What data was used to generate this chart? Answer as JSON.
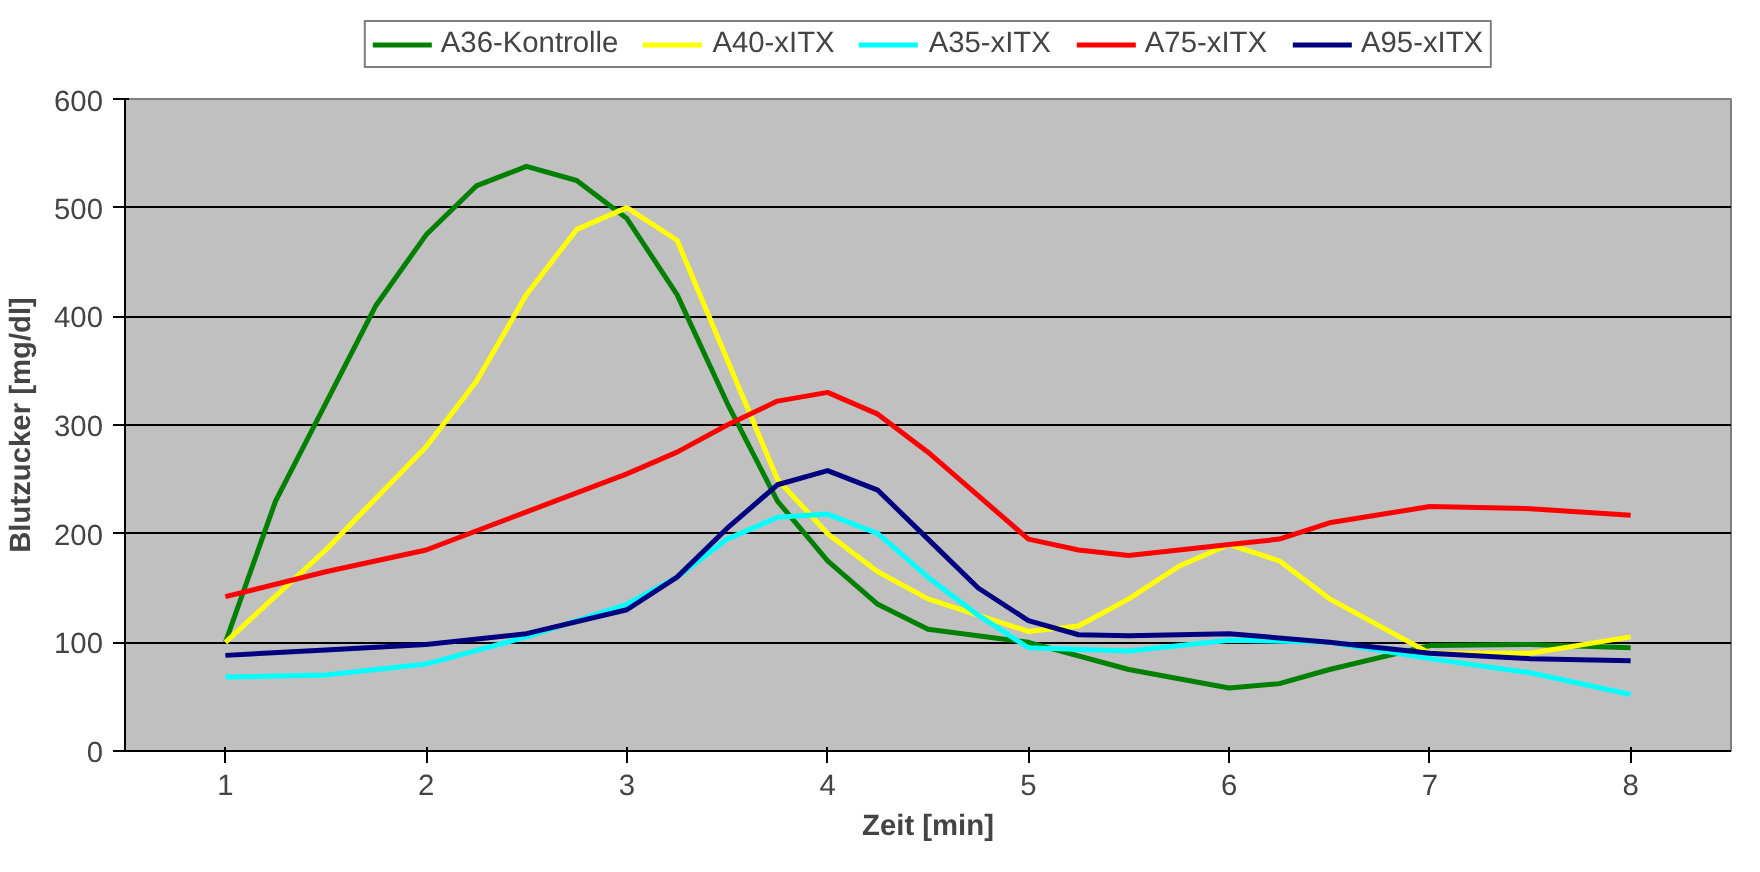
{
  "chart_data": {
    "type": "line",
    "xlabel": "Zeit [min]",
    "ylabel": "Blutzucker [mg/dl]",
    "xlim": [
      0.5,
      8.5
    ],
    "xticks": [
      1,
      2,
      3,
      4,
      5,
      6,
      7,
      8
    ],
    "ylim": [
      0,
      600
    ],
    "yticks": [
      0,
      100,
      200,
      300,
      400,
      500,
      600
    ],
    "grid": "y",
    "legend": "top",
    "marker": "none",
    "line_style": "solid",
    "series": [
      {
        "name": "A36-Kontrolle",
        "color": "#008000",
        "x": [
          1,
          1.25,
          1.5,
          1.75,
          2,
          2.25,
          2.5,
          2.75,
          3,
          3.25,
          3.5,
          3.75,
          4,
          4.25,
          4.5,
          5,
          5.5,
          6,
          6.25,
          6.5,
          7,
          7.5,
          8
        ],
        "values": [
          100,
          230,
          320,
          410,
          475,
          520,
          538,
          525,
          490,
          420,
          320,
          230,
          175,
          135,
          112,
          100,
          75,
          58,
          62,
          75,
          97,
          98,
          95
        ]
      },
      {
        "name": "A40-xITX",
        "color": "#ffff00",
        "x": [
          1,
          1.5,
          2,
          2.25,
          2.5,
          2.75,
          3,
          3.25,
          3.5,
          3.75,
          4,
          4.25,
          4.5,
          5,
          5.25,
          5.5,
          5.75,
          6,
          6.25,
          6.5,
          7,
          7.5,
          8
        ],
        "values": [
          100,
          185,
          280,
          340,
          420,
          480,
          500,
          470,
          360,
          250,
          200,
          165,
          140,
          110,
          115,
          140,
          170,
          190,
          175,
          140,
          90,
          90,
          105
        ]
      },
      {
        "name": "A35-xITX",
        "color": "#00ffff",
        "x": [
          1,
          1.5,
          2,
          2.5,
          3,
          3.25,
          3.5,
          3.75,
          4,
          4.25,
          4.5,
          4.75,
          5,
          5.5,
          6,
          6.5,
          7,
          7.5,
          8
        ],
        "values": [
          68,
          70,
          80,
          105,
          135,
          160,
          195,
          215,
          218,
          200,
          160,
          125,
          95,
          92,
          102,
          100,
          85,
          72,
          52
        ]
      },
      {
        "name": "A75-xITX",
        "color": "#ff0000",
        "x": [
          1,
          1.5,
          2,
          2.5,
          3,
          3.25,
          3.5,
          3.75,
          4,
          4.25,
          4.5,
          4.75,
          5,
          5.25,
          5.5,
          6,
          6.25,
          6.5,
          7,
          7.5,
          8
        ],
        "values": [
          142,
          165,
          185,
          220,
          255,
          275,
          300,
          322,
          330,
          310,
          275,
          235,
          195,
          185,
          180,
          190,
          195,
          210,
          225,
          223,
          217
        ]
      },
      {
        "name": "A95-xITX",
        "color": "#000080",
        "x": [
          1,
          1.5,
          2,
          2.5,
          3,
          3.25,
          3.5,
          3.75,
          4,
          4.25,
          4.5,
          4.75,
          5,
          5.25,
          5.5,
          6,
          6.5,
          7,
          7.5,
          8
        ],
        "values": [
          88,
          93,
          98,
          108,
          130,
          160,
          205,
          245,
          258,
          240,
          195,
          150,
          120,
          107,
          106,
          108,
          100,
          90,
          85,
          83
        ]
      }
    ]
  }
}
